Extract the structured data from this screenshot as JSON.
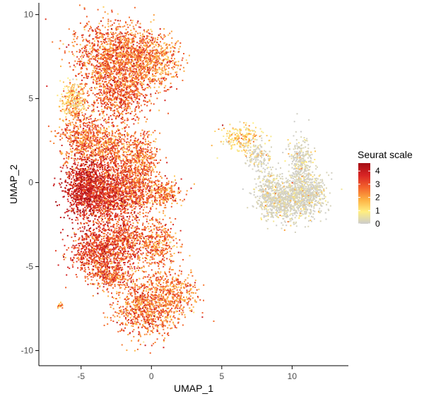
{
  "chart_data": {
    "type": "scatter",
    "xlabel": "UMAP_1",
    "ylabel": "UMAP_2",
    "xlim": [
      -8,
      14
    ],
    "ylim": [
      -10.9,
      10.7
    ],
    "x_ticks": [
      -5,
      0,
      5,
      10
    ],
    "y_ticks": [
      -10,
      -5,
      0,
      5,
      10
    ],
    "x_tick_labels": [
      "-5",
      "0",
      "5",
      "10"
    ],
    "y_tick_labels": [
      "-10",
      "-5",
      "0",
      "5",
      "10"
    ],
    "grid": false,
    "color_scale": {
      "title": "Seurat scale",
      "min": 0,
      "max": 4.6,
      "breaks": [
        4,
        3,
        2,
        1,
        0
      ],
      "break_labels": [
        "4",
        "3",
        "2",
        "1",
        "0"
      ],
      "colors": [
        "#cccccc",
        "#ffee80",
        "#fdb042",
        "#f3632c",
        "#d82424",
        "#a50f15"
      ],
      "legend_position": "right"
    },
    "point_color_default": "#f08a2a",
    "clusters": [
      {
        "cx": -3.2,
        "cy": 7.4,
        "sx": 1.5,
        "sy": 1.3,
        "w": 170,
        "m": 2.7
      },
      {
        "cx": -1.2,
        "cy": 7.2,
        "sx": 1.1,
        "sy": 1.2,
        "w": 110,
        "m": 2.6
      },
      {
        "cx": 0.6,
        "cy": 7.3,
        "sx": 0.9,
        "sy": 0.9,
        "w": 60,
        "m": 2.4
      },
      {
        "cx": -2.3,
        "cy": 5.0,
        "sx": 1.2,
        "sy": 0.8,
        "w": 80,
        "m": 2.9
      },
      {
        "cx": -5.6,
        "cy": 4.8,
        "sx": 0.5,
        "sy": 0.7,
        "w": 45,
        "m": 1.5
      },
      {
        "cx": -4.8,
        "cy": 2.6,
        "sx": 1.0,
        "sy": 1.0,
        "w": 90,
        "m": 2.7
      },
      {
        "cx": -2.6,
        "cy": 2.1,
        "sx": 1.0,
        "sy": 0.8,
        "w": 70,
        "m": 2.6
      },
      {
        "cx": -0.6,
        "cy": 1.4,
        "sx": 0.7,
        "sy": 0.9,
        "w": 50,
        "m": 2.5
      },
      {
        "cx": -4.6,
        "cy": -0.4,
        "sx": 0.9,
        "sy": 1.0,
        "w": 170,
        "m": 3.9
      },
      {
        "cx": -3.0,
        "cy": -0.6,
        "sx": 1.0,
        "sy": 1.2,
        "w": 150,
        "m": 3.4
      },
      {
        "cx": -1.2,
        "cy": -0.3,
        "sx": 0.8,
        "sy": 0.9,
        "w": 80,
        "m": 2.9
      },
      {
        "cx": 0.8,
        "cy": -0.6,
        "sx": 0.8,
        "sy": 0.5,
        "w": 45,
        "m": 2.5
      },
      {
        "cx": -3.8,
        "cy": -4.2,
        "sx": 1.2,
        "sy": 0.9,
        "w": 140,
        "m": 3.3
      },
      {
        "cx": -1.8,
        "cy": -3.4,
        "sx": 0.9,
        "sy": 0.9,
        "w": 70,
        "m": 3.0
      },
      {
        "cx": 0.4,
        "cy": -3.6,
        "sx": 0.8,
        "sy": 1.0,
        "w": 60,
        "m": 2.6
      },
      {
        "cx": -2.8,
        "cy": -5.6,
        "sx": 0.8,
        "sy": 0.5,
        "w": 40,
        "m": 2.8
      },
      {
        "cx": -0.3,
        "cy": -7.4,
        "sx": 1.3,
        "sy": 1.1,
        "w": 150,
        "m": 2.6
      },
      {
        "cx": 1.8,
        "cy": -6.6,
        "sx": 0.9,
        "sy": 0.8,
        "w": 50,
        "m": 2.4
      },
      {
        "cx": 9.6,
        "cy": -1.1,
        "sx": 1.2,
        "sy": 0.7,
        "w": 130,
        "m": 0.6
      },
      {
        "cx": 11.1,
        "cy": -0.6,
        "sx": 0.8,
        "sy": 0.7,
        "w": 70,
        "m": 0.9
      },
      {
        "cx": 10.6,
        "cy": 1.2,
        "sx": 0.5,
        "sy": 0.9,
        "w": 50,
        "m": 0.6
      },
      {
        "cx": 8.3,
        "cy": -0.4,
        "sx": 0.5,
        "sy": 0.8,
        "w": 35,
        "m": 0.7
      },
      {
        "cx": 6.4,
        "cy": 2.6,
        "sx": 0.9,
        "sy": 0.5,
        "w": 35,
        "m": 1.3
      },
      {
        "cx": 7.6,
        "cy": 1.6,
        "sx": 0.5,
        "sy": 0.5,
        "w": 20,
        "m": 1.0
      },
      {
        "cx": -6.5,
        "cy": -7.3,
        "sx": 0.15,
        "sy": 0.1,
        "w": 3,
        "m": 1.8
      }
    ]
  }
}
